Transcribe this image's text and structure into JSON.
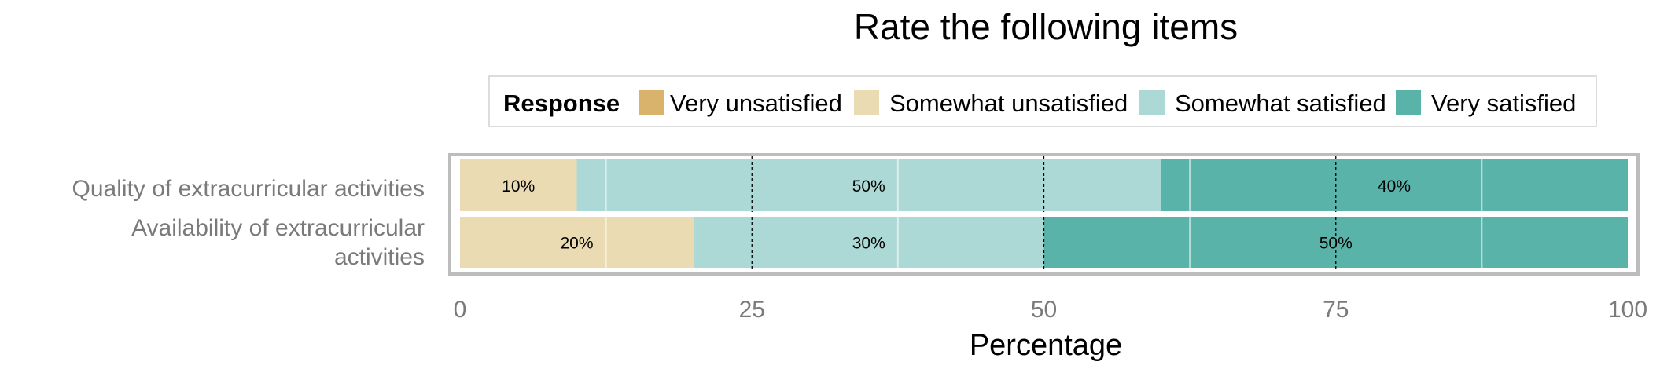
{
  "chart_data": {
    "type": "bar",
    "orientation": "horizontal",
    "stacked": true,
    "title": "Rate the following items",
    "xlabel": "Percentage",
    "ylabel": "",
    "xlim": [
      0,
      100
    ],
    "xticks": [
      "0",
      "25",
      "50",
      "75",
      "100"
    ],
    "grid": true,
    "legend": {
      "title": "Response",
      "position": "top",
      "entries": [
        "Very unsatisfied",
        "Somewhat unsatisfied",
        "Somewhat satisfied",
        "Very satisfied"
      ]
    },
    "categories": [
      {
        "label_lines": [
          "Quality of extracurricular activities"
        ]
      },
      {
        "label_lines": [
          "Availability of extracurricular",
          "activities"
        ]
      }
    ],
    "series": [
      {
        "name": "Very unsatisfied",
        "color": "#d9b36b",
        "values": [
          0,
          0
        ]
      },
      {
        "name": "Somewhat unsatisfied",
        "color": "#ebdbb2",
        "values": [
          10,
          20
        ]
      },
      {
        "name": "Somewhat satisfied",
        "color": "#acd9d5",
        "values": [
          50,
          30
        ]
      },
      {
        "name": "Very satisfied",
        "color": "#5ab3a9",
        "values": [
          40,
          50
        ]
      }
    ],
    "data_labels": [
      [
        "",
        "10%",
        "50%",
        "40%"
      ],
      [
        "",
        "20%",
        "30%",
        "50%"
      ]
    ]
  }
}
